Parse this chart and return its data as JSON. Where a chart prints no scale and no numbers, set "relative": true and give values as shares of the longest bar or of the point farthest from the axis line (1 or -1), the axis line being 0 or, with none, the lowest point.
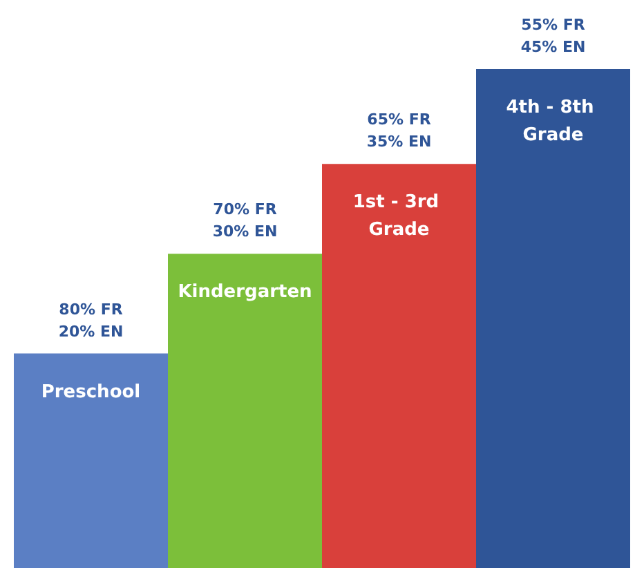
{
  "chart_data": {
    "type": "bar",
    "relative": true,
    "categories": [
      "Preschool",
      "Kindergarten",
      "1st - 3rd Grade",
      "4th - 8th Grade"
    ],
    "values": [
      0.43,
      0.63,
      0.81,
      1
    ],
    "colors": [
      "#5b7fc4",
      "#7cbf3a",
      "#d9403b",
      "#2f5597"
    ],
    "annotations": [
      {
        "text": "80% FR\n20% EN",
        "x": "Preschool",
        "y": 0.43
      },
      {
        "text": "70% FR\n30% EN",
        "x": "Kindergarten",
        "y": 0.63
      },
      {
        "text": "65% FR\n35% EN",
        "x": "1st - 3rd Grade",
        "y": 0.81
      },
      {
        "text": "55% FR\n45% EN",
        "x": "4th - 8th Grade",
        "y": 1
      }
    ]
  }
}
